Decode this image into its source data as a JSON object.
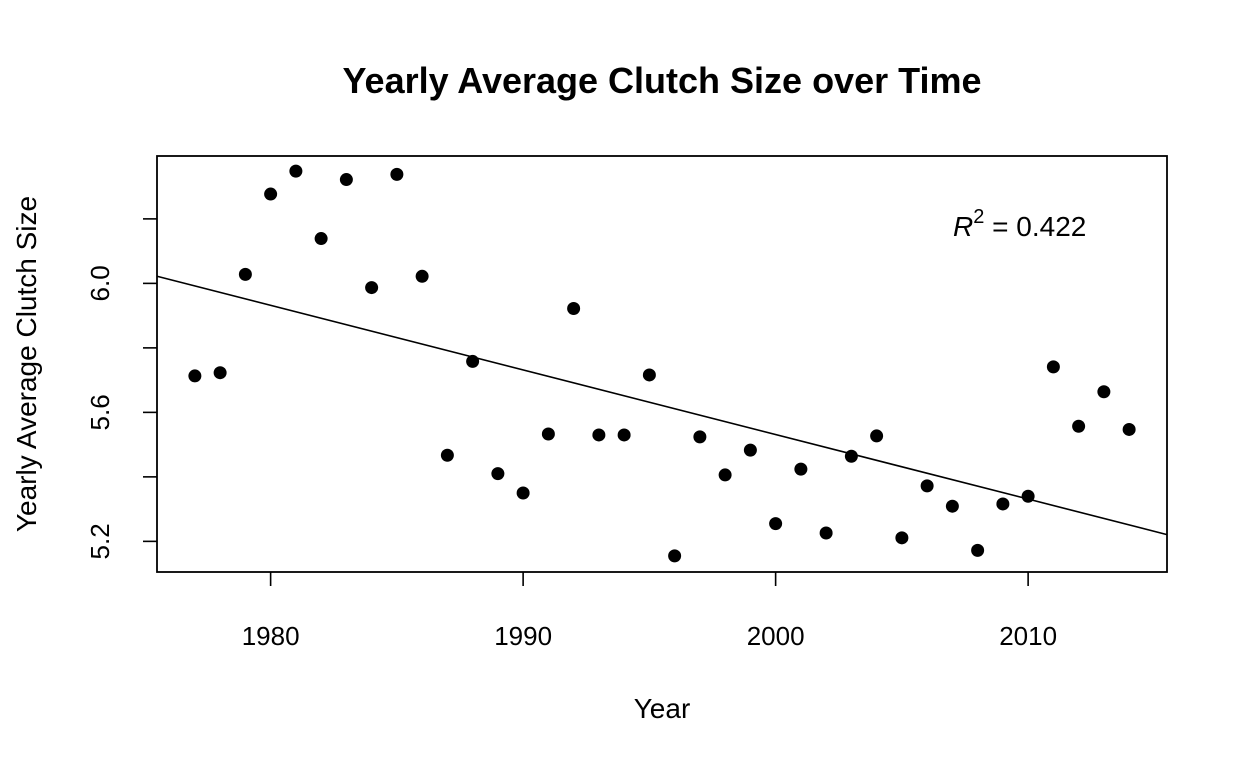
{
  "chart_data": {
    "type": "scatter",
    "title": "Yearly Average Clutch Size over Time",
    "xlabel": "Year",
    "ylabel": "Yearly Average Clutch Size",
    "xlim": [
      1975.5,
      2015.5
    ],
    "ylim": [
      5.105,
      6.395
    ],
    "x_ticks": [
      1980,
      1990,
      2000,
      2010
    ],
    "x_tick_labels": [
      "1980",
      "1990",
      "2000",
      "2010"
    ],
    "y_ticks": [
      5.2,
      5.4,
      5.6,
      5.8,
      6.0,
      6.2
    ],
    "y_tick_labels": [
      "5.2",
      "",
      "5.6",
      "",
      "6.0",
      ""
    ],
    "grid": false,
    "points": [
      {
        "x": 1977,
        "y": 5.713
      },
      {
        "x": 1978,
        "y": 5.723
      },
      {
        "x": 1979,
        "y": 6.028
      },
      {
        "x": 1980,
        "y": 6.277
      },
      {
        "x": 1981,
        "y": 6.348
      },
      {
        "x": 1982,
        "y": 6.139
      },
      {
        "x": 1983,
        "y": 6.322
      },
      {
        "x": 1984,
        "y": 5.987
      },
      {
        "x": 1985,
        "y": 6.338
      },
      {
        "x": 1986,
        "y": 6.022
      },
      {
        "x": 1987,
        "y": 5.467
      },
      {
        "x": 1988,
        "y": 5.758
      },
      {
        "x": 1989,
        "y": 5.41
      },
      {
        "x": 1990,
        "y": 5.35
      },
      {
        "x": 1991,
        "y": 5.533
      },
      {
        "x": 1992,
        "y": 5.922
      },
      {
        "x": 1993,
        "y": 5.53
      },
      {
        "x": 1994,
        "y": 5.53
      },
      {
        "x": 1995,
        "y": 5.716
      },
      {
        "x": 1996,
        "y": 5.155
      },
      {
        "x": 1997,
        "y": 5.524
      },
      {
        "x": 1998,
        "y": 5.406
      },
      {
        "x": 1999,
        "y": 5.483
      },
      {
        "x": 2000,
        "y": 5.255
      },
      {
        "x": 2001,
        "y": 5.424
      },
      {
        "x": 2002,
        "y": 5.226
      },
      {
        "x": 2003,
        "y": 5.464
      },
      {
        "x": 2004,
        "y": 5.527
      },
      {
        "x": 2005,
        "y": 5.211
      },
      {
        "x": 2006,
        "y": 5.372
      },
      {
        "x": 2007,
        "y": 5.309
      },
      {
        "x": 2008,
        "y": 5.172
      },
      {
        "x": 2009,
        "y": 5.316
      },
      {
        "x": 2010,
        "y": 5.34
      },
      {
        "x": 2011,
        "y": 5.741
      },
      {
        "x": 2012,
        "y": 5.557
      },
      {
        "x": 2013,
        "y": 5.664
      },
      {
        "x": 2014,
        "y": 5.547
      }
    ],
    "fit_line": {
      "x": [
        1975.5,
        2015.5
      ],
      "y": [
        6.022,
        5.221
      ]
    },
    "annotation": {
      "prefix": "R",
      "superscript": "2",
      "text": " = 0.422"
    }
  }
}
